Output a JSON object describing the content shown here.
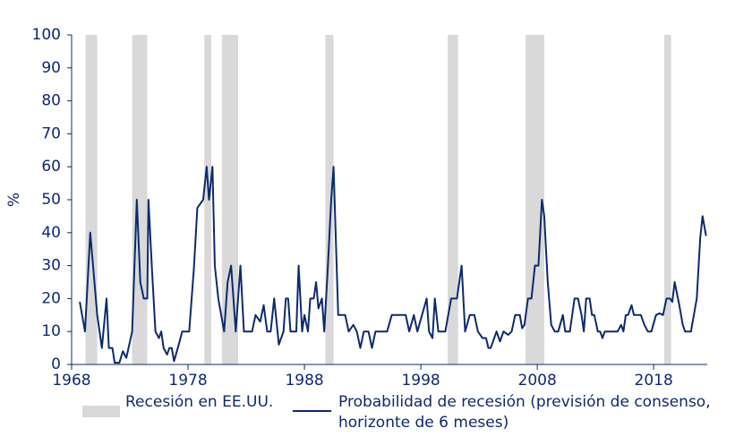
{
  "chart_data": {
    "type": "line",
    "y_label": "%",
    "xlim": [
      1968,
      2022.6
    ],
    "xticks": [
      1968,
      1978,
      1988,
      1998,
      2008,
      2018
    ],
    "ylim": [
      0,
      100
    ],
    "yticks": [
      0,
      10,
      20,
      30,
      40,
      50,
      60,
      70,
      80,
      90,
      100
    ],
    "recessions": {
      "name": "Recesión en EE.UU.",
      "color": "#d9d9d9",
      "spans": [
        [
          1969.2,
          1970.2
        ],
        [
          1973.2,
          1974.5
        ],
        [
          1979.4,
          1980.0
        ],
        [
          1980.9,
          1982.3
        ],
        [
          1989.8,
          1990.5
        ],
        [
          2000.3,
          2001.2
        ],
        [
          2007.0,
          2008.6
        ],
        [
          2018.9,
          2019.5
        ]
      ]
    },
    "x": [
      1968.7,
      1969.15,
      1969.6,
      1970.2,
      1970.6,
      1971.0,
      1971.2,
      1971.5,
      1971.7,
      1972.1,
      1972.4,
      1972.7,
      1973.2,
      1973.6,
      1973.9,
      1974.2,
      1974.5,
      1974.6,
      1974.9,
      1975.2,
      1975.5,
      1975.7,
      1975.9,
      1976.2,
      1976.4,
      1976.6,
      1976.8,
      1977.2,
      1977.5,
      1978.1,
      1978.5,
      1978.8,
      1979.3,
      1979.6,
      1979.8,
      1980.1,
      1980.3,
      1980.6,
      1981.1,
      1981.4,
      1981.7,
      1982.1,
      1982.5,
      1982.8,
      1983.5,
      1983.8,
      1984.2,
      1984.5,
      1984.8,
      1985.1,
      1985.4,
      1985.8,
      1986.2,
      1986.4,
      1986.6,
      1986.8,
      1987.3,
      1987.5,
      1987.8,
      1988.0,
      1988.3,
      1988.5,
      1988.8,
      1989.0,
      1989.2,
      1989.5,
      1989.7,
      1990.0,
      1990.3,
      1990.5,
      1990.9,
      1991.5,
      1991.8,
      1992.2,
      1992.5,
      1992.8,
      1993.1,
      1993.5,
      1993.8,
      1994.1,
      1994.5,
      1995.1,
      1995.5,
      1996.1,
      1996.7,
      1997.0,
      1997.4,
      1997.7,
      1998.1,
      1998.5,
      1998.7,
      1999.0,
      1999.2,
      1999.5,
      2000.1,
      2000.6,
      2001.1,
      2001.5,
      2001.8,
      2002.2,
      2002.6,
      2002.9,
      2003.3,
      2003.6,
      2003.8,
      2004.0,
      2004.3,
      2004.5,
      2004.8,
      2005.1,
      2005.5,
      2005.8,
      2006.1,
      2006.5,
      2006.7,
      2006.9,
      2007.2,
      2007.5,
      2007.8,
      2008.1,
      2008.4,
      2008.6,
      2008.9,
      2009.2,
      2009.5,
      2009.8,
      2010.2,
      2010.4,
      2010.8,
      2011.2,
      2011.5,
      2011.8,
      2012.0,
      2012.2,
      2012.5,
      2012.7,
      2012.9,
      2013.2,
      2013.4,
      2013.6,
      2013.8,
      2014.5,
      2014.9,
      2015.2,
      2015.4,
      2015.6,
      2015.8,
      2016.1,
      2016.3,
      2016.9,
      2017.2,
      2017.5,
      2017.8,
      2018.2,
      2018.5,
      2018.8,
      2019.1,
      2019.4,
      2019.6,
      2019.8,
      2020.2,
      2020.5,
      2020.7,
      2021.2,
      2021.7,
      2022.0,
      2022.2,
      2022.5
    ],
    "series": [
      {
        "name": "Probabilidad de recesión (previsión de consenso, horizonte de 6 meses)",
        "color": "#0d2a6e",
        "values": [
          19,
          10,
          40,
          15,
          5,
          20,
          5,
          5,
          0.5,
          0.5,
          4,
          2,
          10,
          50,
          25,
          20,
          20,
          50,
          29,
          10,
          8,
          10,
          5,
          3,
          5,
          5,
          1,
          6,
          10,
          10,
          29,
          47.5,
          50,
          60,
          50,
          60,
          30,
          20,
          10,
          25,
          30,
          10,
          30,
          10,
          10,
          15,
          13,
          18,
          10,
          10,
          20,
          6,
          10,
          20,
          20,
          10,
          10,
          30,
          10,
          15,
          10,
          20,
          20,
          25,
          17,
          20,
          10,
          29,
          50,
          60,
          15,
          15,
          10,
          12,
          10,
          5,
          10,
          10,
          5,
          10,
          10,
          10,
          15,
          15,
          15,
          10,
          15,
          10,
          15,
          20,
          10,
          8,
          20,
          10,
          10,
          20,
          20,
          30,
          10,
          15,
          15,
          10,
          8,
          8,
          5,
          5,
          8,
          10,
          7,
          10,
          9,
          10,
          15,
          15,
          11,
          12,
          20,
          20,
          30,
          30,
          50,
          45,
          25,
          12,
          10,
          10,
          15,
          10,
          10,
          20,
          20,
          15,
          10,
          20,
          20,
          15,
          15,
          10,
          10,
          8,
          10,
          10,
          10,
          12,
          10,
          15,
          15,
          18,
          15,
          15,
          12,
          10,
          10,
          15,
          15.5,
          15,
          20,
          20,
          19,
          25,
          18,
          12,
          10,
          10,
          20,
          38.5,
          45,
          39
        ]
      }
    ]
  }
}
